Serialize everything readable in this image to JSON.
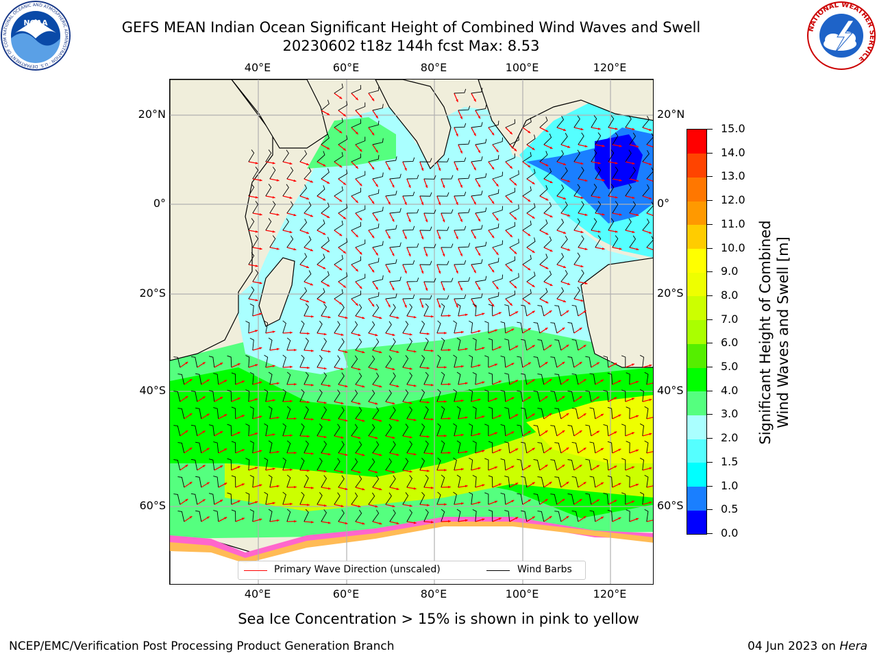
{
  "header": {
    "title_line1": "GEFS MEAN Indian Ocean Significant Height of Combined Wind Waves and Swell",
    "title_line2": "20230602 t18z 144h fcst   Max: 8.53"
  },
  "logos": {
    "left_name": "NOAA",
    "left_ring_text": "NATIONAL OCEANIC AND ATMOSPHERIC ADMINISTRATION · U.S. DEPARTMENT OF COMMERCE",
    "right_ring_text": "NATIONAL WEATHER SERVICE"
  },
  "map": {
    "lon_top": [
      "40°E",
      "60°E",
      "80°E",
      "100°E",
      "120°E"
    ],
    "lon_bottom": [
      "40°E",
      "60°E",
      "80°E",
      "100°E",
      "120°E"
    ],
    "lat_left": [
      "20°N",
      "0°",
      "20°S",
      "40°S",
      "60°S"
    ],
    "lat_right": [
      "20°N",
      "0°",
      "20°S",
      "40°S",
      "60°S"
    ],
    "colors": {
      "land": "#f0eedb",
      "ocean_calm": "#aaffff",
      "swell_arrow": "#ff0000",
      "barb": "#000000"
    }
  },
  "legend": {
    "wave_label": "Primary Wave Direction (unscaled)",
    "barb_label": "Wind Barbs",
    "wave_color": "#ff0000",
    "barb_color": "#000000"
  },
  "colorbar": {
    "title_line1": "Significant Height of Combined",
    "title_line2": "Wind Waves and Swell [m]",
    "ticks": [
      "0.0",
      "0.5",
      "1.0",
      "1.5",
      "2.0",
      "3.0",
      "4.0",
      "5.0",
      "6.0",
      "7.0",
      "8.0",
      "9.0",
      "10.0",
      "11.0",
      "12.0",
      "13.0",
      "14.0",
      "15.0"
    ],
    "colors": [
      "#0000ff",
      "#1a7fff",
      "#00ffff",
      "#55ffff",
      "#aaffff",
      "#55ff7f",
      "#00ff00",
      "#55ee00",
      "#aaff00",
      "#ccff00",
      "#eeff00",
      "#ffff00",
      "#ffcc00",
      "#ff9900",
      "#ff7700",
      "#ff4400",
      "#ff0000"
    ]
  },
  "note": "Sea Ice Concentration > 15% is shown in pink to yellow",
  "footer": {
    "left": "NCEP/EMC/Verification Post Processing Product Generation Branch",
    "date": "04 Jun 2023 on",
    "host": "Hera"
  }
}
